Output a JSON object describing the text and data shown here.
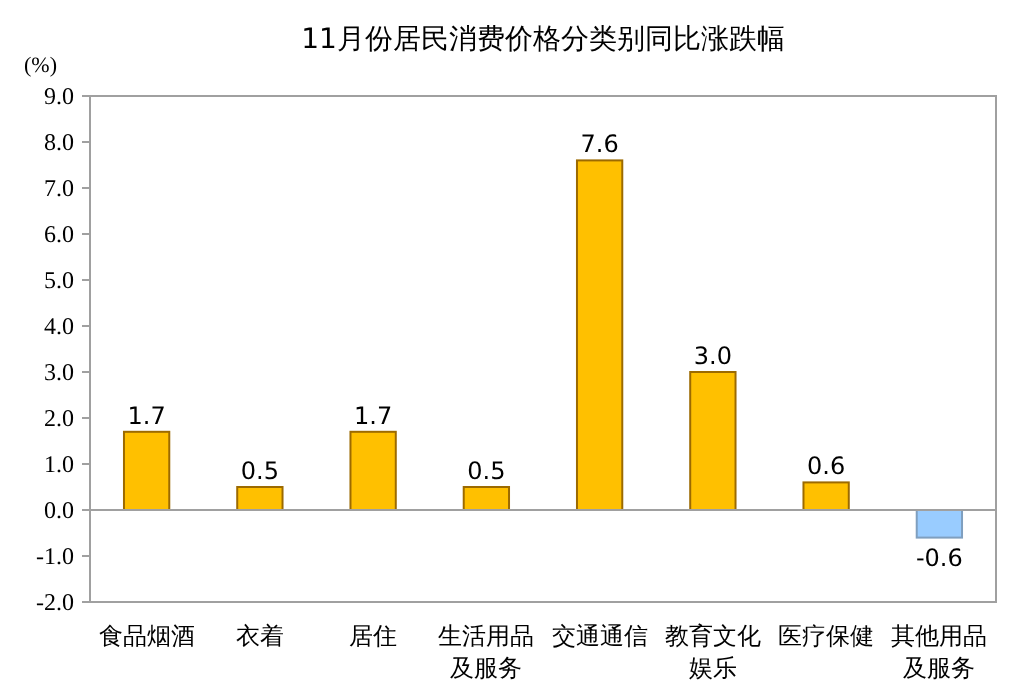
{
  "chart_data": {
    "type": "bar",
    "title": "11月份居民消费价格分类别同比涨跌幅",
    "ylabel": "(%)",
    "categories": [
      "食品烟酒",
      "衣着",
      "居住",
      "生活用品及服务",
      "交通通信",
      "教育文化娱乐",
      "医疗保健",
      "其他用品及服务"
    ],
    "values": [
      1.7,
      0.5,
      1.7,
      0.5,
      7.6,
      3.0,
      0.6,
      -0.6
    ],
    "value_labels": [
      "1.7",
      "0.5",
      "1.7",
      "0.5",
      "7.6",
      "3.0",
      "0.6",
      "-0.6"
    ],
    "colors": [
      "#ffc000",
      "#ffc000",
      "#ffc000",
      "#ffc000",
      "#ffc000",
      "#ffc000",
      "#ffc000",
      "#99ccff"
    ],
    "ylim": [
      -2,
      9
    ],
    "yticks": [
      {
        "value": -2,
        "label": "-2.0"
      },
      {
        "value": -1,
        "label": "-1.0"
      },
      {
        "value": 0,
        "label": "0.0"
      },
      {
        "value": 1,
        "label": "1.0"
      },
      {
        "value": 2,
        "label": "2.0"
      },
      {
        "value": 3,
        "label": "3.0"
      },
      {
        "value": 4,
        "label": "4.0"
      },
      {
        "value": 5,
        "label": "5.0"
      },
      {
        "value": 6,
        "label": "6.0"
      },
      {
        "value": 7,
        "label": "7.0"
      },
      {
        "value": 8,
        "label": "8.0"
      },
      {
        "value": 9,
        "label": "9.0"
      }
    ],
    "relative": false
  }
}
